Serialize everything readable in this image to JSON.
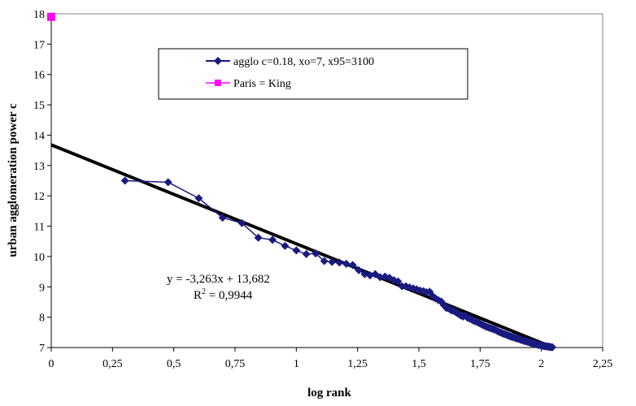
{
  "chart_data": {
    "type": "scatter",
    "xlabel": "log rank",
    "ylabel": "urban agglomeration power c",
    "xlim": [
      0,
      2.25
    ],
    "ylim": [
      7,
      18
    ],
    "x_ticks": [
      "0",
      "0,25",
      "0,5",
      "0,75",
      "1",
      "1,25",
      "1,5",
      "1,75",
      "2",
      "2,25"
    ],
    "x_tick_values": [
      0,
      0.25,
      0.5,
      0.75,
      1,
      1.25,
      1.5,
      1.75,
      2,
      2.25
    ],
    "y_ticks": [
      "7",
      "8",
      "9",
      "10",
      "11",
      "12",
      "13",
      "14",
      "15",
      "16",
      "17",
      "18"
    ],
    "y_tick_values": [
      7,
      8,
      9,
      10,
      11,
      12,
      13,
      14,
      15,
      16,
      17,
      18
    ],
    "series": [
      {
        "name": "agglo c=0.18, xo=7, x95=3100",
        "color": "#1a1a80",
        "marker": "diamond",
        "x": [
          0.301,
          0.477,
          0.602,
          0.699,
          0.778,
          0.845,
          0.903,
          0.954,
          1.0,
          1.041,
          1.079,
          1.114,
          1.146,
          1.176,
          1.204,
          1.23,
          1.255,
          1.279,
          1.301,
          1.322,
          1.342,
          1.362,
          1.38,
          1.398,
          1.415,
          1.431,
          1.447,
          1.462,
          1.477,
          1.491,
          1.505,
          1.519,
          1.531,
          1.544,
          1.556,
          1.568,
          1.58,
          1.591,
          1.602,
          1.613,
          1.623,
          1.633,
          1.643,
          1.653,
          1.663,
          1.672,
          1.681,
          1.69,
          1.699,
          1.708,
          1.716,
          1.724,
          1.732,
          1.74,
          1.748,
          1.756,
          1.763,
          1.771,
          1.778,
          1.785,
          1.792,
          1.799,
          1.806,
          1.813,
          1.82,
          1.826,
          1.833,
          1.839,
          1.845,
          1.851,
          1.857,
          1.863,
          1.869,
          1.875,
          1.881,
          1.886,
          1.892,
          1.898,
          1.903,
          1.908,
          1.914,
          1.919,
          1.924,
          1.929,
          1.934,
          1.94,
          1.944,
          1.949,
          1.954,
          1.959,
          1.964,
          1.968,
          1.973,
          1.978,
          1.982,
          1.987,
          1.991,
          1.996,
          2.0,
          2.004,
          2.009,
          2.013,
          2.017,
          2.021,
          2.025,
          2.029,
          2.033,
          2.037,
          2.041,
          2.045
        ],
        "y": [
          12.5,
          12.45,
          11.92,
          11.28,
          11.1,
          10.62,
          10.55,
          10.35,
          10.2,
          10.08,
          10.1,
          9.85,
          9.82,
          9.8,
          9.76,
          9.72,
          9.55,
          9.42,
          9.38,
          9.42,
          9.32,
          9.34,
          9.3,
          9.22,
          9.18,
          9.02,
          9.02,
          8.98,
          8.95,
          8.92,
          8.88,
          8.86,
          8.82,
          8.84,
          8.7,
          8.62,
          8.56,
          8.52,
          8.4,
          8.3,
          8.28,
          8.22,
          8.2,
          8.15,
          8.1,
          8.05,
          8.02,
          8.05,
          7.98,
          7.95,
          7.92,
          7.88,
          7.86,
          7.83,
          7.8,
          7.76,
          7.74,
          7.7,
          7.68,
          7.66,
          7.64,
          7.62,
          7.6,
          7.58,
          7.55,
          7.52,
          7.5,
          7.48,
          7.45,
          7.44,
          7.42,
          7.4,
          7.38,
          7.36,
          7.35,
          7.34,
          7.32,
          7.3,
          7.3,
          7.28,
          7.26,
          7.25,
          7.24,
          7.22,
          7.21,
          7.2,
          7.19,
          7.18,
          7.16,
          7.15,
          7.14,
          7.13,
          7.12,
          7.11,
          7.1,
          7.09,
          7.08,
          7.08,
          7.07,
          7.06,
          7.05,
          7.05,
          7.04,
          7.04,
          7.03,
          7.03,
          7.02,
          7.02,
          7.01,
          7.01
        ]
      },
      {
        "name": "Paris = King",
        "color": "#ff00ff",
        "marker": "square",
        "x": [
          0
        ],
        "y": [
          17.9
        ]
      }
    ],
    "trendline": {
      "slope": -3.263,
      "intercept": 13.682,
      "color": "#000000",
      "x_range": [
        0,
        2.05
      ],
      "equation_label": "y = -3,263x + 13,682",
      "r2_prefix": "R",
      "r2_superscript": "2",
      "r2_suffix": " = 0,9944"
    },
    "legend": {
      "entries": [
        "agglo c=0.18, xo=7, x95=3100",
        "Paris = King"
      ],
      "placement": "top-center"
    },
    "grid": false
  }
}
